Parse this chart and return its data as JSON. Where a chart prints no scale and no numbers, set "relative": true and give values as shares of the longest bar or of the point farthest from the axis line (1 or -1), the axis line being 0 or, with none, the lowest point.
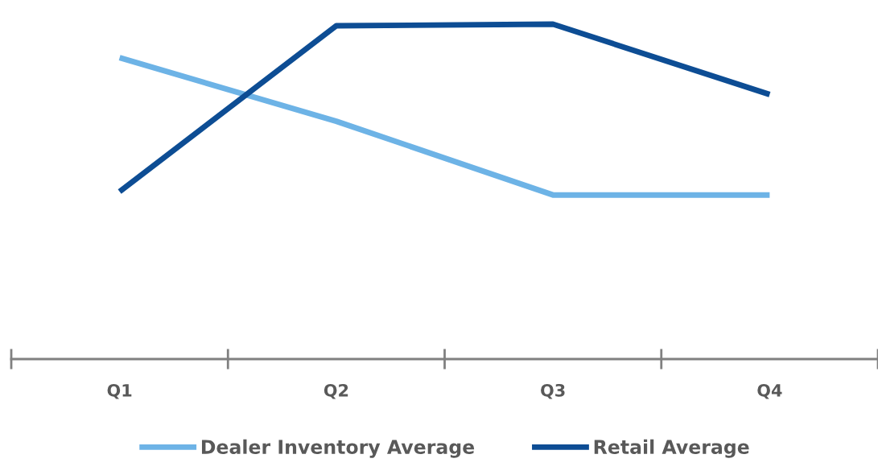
{
  "chart_data": {
    "type": "line",
    "relative": true,
    "categories": [
      "Q1",
      "Q2",
      "Q3",
      "Q4"
    ],
    "series": [
      {
        "name": "Dealer Inventory Average",
        "color": "#6db3e6",
        "values": [
          0.9,
          0.71,
          0.49,
          0.49
        ]
      },
      {
        "name": "Retail Average",
        "color": "#0d4d94",
        "values": [
          0.5,
          0.995,
          1,
          0.79
        ]
      }
    ],
    "legend": "bottom",
    "grid": false,
    "marker": "none",
    "line_style": "solid"
  }
}
